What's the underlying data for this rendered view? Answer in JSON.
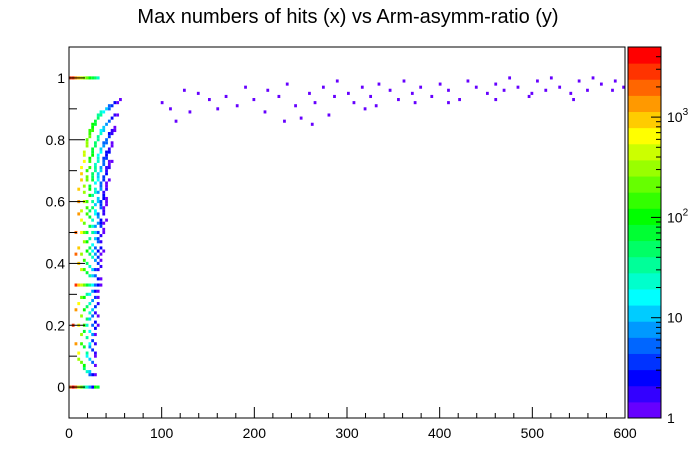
{
  "chart_data": {
    "type": "heatmap",
    "title": "Max numbers of hits (x) vs Arm-asymm-ratio (y)",
    "xlabel": "",
    "ylabel": "",
    "xlim": [
      0,
      600
    ],
    "ylim": [
      -0.1,
      1.1
    ],
    "x_ticks": [
      "0",
      "100",
      "200",
      "300",
      "400",
      "500",
      "600"
    ],
    "y_ticks": [
      "0",
      "0.2",
      "0.4",
      "0.6",
      "0.8",
      "1"
    ],
    "x_tick_values": [
      0,
      100,
      200,
      300,
      400,
      500,
      600
    ],
    "y_tick_values": [
      0,
      0.2,
      0.4,
      0.6,
      0.8,
      1.0
    ],
    "colorbar": {
      "scale": "log",
      "range": [
        1,
        5000
      ],
      "labels": [
        "1",
        "10",
        "10",
        "10"
      ],
      "exponents": [
        "",
        "",
        "2",
        "3"
      ],
      "label_values": [
        1,
        10,
        100,
        1000
      ],
      "palette": [
        "#6600ff",
        "#3300ff",
        "#0000ff",
        "#0033ff",
        "#0066ff",
        "#0099ff",
        "#00ccff",
        "#00ffff",
        "#00ffcc",
        "#00ff99",
        "#00ff66",
        "#00ff33",
        "#00ff00",
        "#33ff00",
        "#66ff00",
        "#99ff00",
        "#ccff00",
        "#ffff00",
        "#ffcc00",
        "#ff9900",
        "#ff6600",
        "#ff3300",
        "#ff0000"
      ]
    },
    "curves": [
      {
        "k": 2,
        "count": 5000
      },
      {
        "k": 3,
        "count": 3000
      },
      {
        "k": 4,
        "count": 1800
      },
      {
        "k": 5,
        "count": 1000
      },
      {
        "k": 6,
        "count": 600
      },
      {
        "k": 7,
        "count": 350
      },
      {
        "k": 8,
        "count": 200
      },
      {
        "k": 9,
        "count": 120
      },
      {
        "k": 10,
        "count": 70
      },
      {
        "k": 11,
        "count": 40
      },
      {
        "k": 12,
        "count": 22
      },
      {
        "k": 13,
        "count": 12
      },
      {
        "k": 14,
        "count": 7
      },
      {
        "k": 15,
        "count": 4
      },
      {
        "k": 16,
        "count": 3
      },
      {
        "k": 18,
        "count": 2
      },
      {
        "k": 20,
        "count": 1
      },
      {
        "k": 24,
        "count": 1
      },
      {
        "k": 28,
        "count": 1
      },
      {
        "k": 32,
        "count": 1
      },
      {
        "k": 40,
        "count": 1
      }
    ],
    "scatter_points": [
      [
        100,
        0.92
      ],
      [
        110,
        0.9
      ],
      [
        115,
        0.86
      ],
      [
        125,
        0.96
      ],
      [
        130,
        0.89
      ],
      [
        140,
        0.95
      ],
      [
        150,
        0.93
      ],
      [
        160,
        0.9
      ],
      [
        170,
        0.94
      ],
      [
        180,
        0.91
      ],
      [
        190,
        0.97
      ],
      [
        200,
        0.93
      ],
      [
        210,
        0.89
      ],
      [
        215,
        0.96
      ],
      [
        225,
        0.94
      ],
      [
        235,
        0.98
      ],
      [
        245,
        0.91
      ],
      [
        250,
        0.87
      ],
      [
        258,
        0.95
      ],
      [
        265,
        0.92
      ],
      [
        275,
        0.97
      ],
      [
        285,
        0.94
      ],
      [
        290,
        0.99
      ],
      [
        300,
        0.95
      ],
      [
        308,
        0.92
      ],
      [
        315,
        0.97
      ],
      [
        325,
        0.94
      ],
      [
        335,
        0.98
      ],
      [
        345,
        0.96
      ],
      [
        355,
        0.93
      ],
      [
        360,
        0.99
      ],
      [
        370,
        0.95
      ],
      [
        380,
        0.97
      ],
      [
        390,
        0.94
      ],
      [
        400,
        0.98
      ],
      [
        410,
        0.96
      ],
      [
        420,
        0.93
      ],
      [
        430,
        0.99
      ],
      [
        440,
        0.97
      ],
      [
        450,
        0.95
      ],
      [
        460,
        0.98
      ],
      [
        470,
        0.96
      ],
      [
        475,
        1.0
      ],
      [
        485,
        0.97
      ],
      [
        495,
        0.94
      ],
      [
        505,
        0.99
      ],
      [
        515,
        0.96
      ],
      [
        520,
        1.0
      ],
      [
        530,
        0.97
      ],
      [
        540,
        0.95
      ],
      [
        550,
        0.99
      ],
      [
        560,
        0.96
      ],
      [
        565,
        1.0
      ],
      [
        575,
        0.98
      ],
      [
        585,
        0.96
      ],
      [
        590,
        0.99
      ],
      [
        598,
        0.97
      ],
      [
        280,
        0.88
      ],
      [
        330,
        0.91
      ],
      [
        410,
        0.92
      ],
      [
        460,
        0.93
      ],
      [
        500,
        0.95
      ],
      [
        545,
        0.93
      ],
      [
        232,
        0.86
      ],
      [
        262,
        0.85
      ],
      [
        318,
        0.9
      ],
      [
        372,
        0.92
      ]
    ]
  }
}
